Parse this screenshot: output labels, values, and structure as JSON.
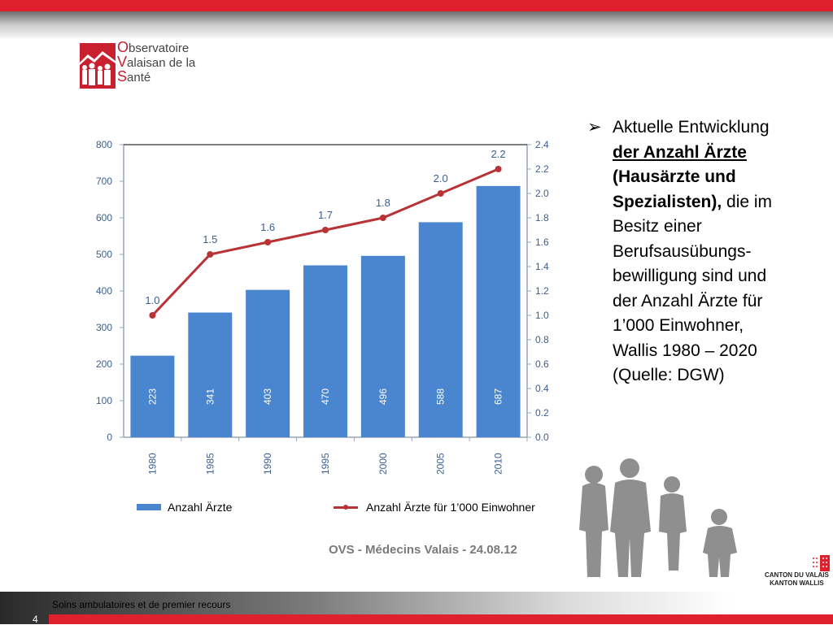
{
  "colors": {
    "brand_red": "#e0202d",
    "bar_blue": "#4a86d0",
    "line_red": "#b83236",
    "axis_text": "#3b5f91"
  },
  "logo": {
    "line1_cap": "O",
    "line1": "bservatoire",
    "line2_cap": "V",
    "line2": "alaisan de la",
    "line3_cap": "S",
    "line3": "anté"
  },
  "chart_data": {
    "type": "bar",
    "categories": [
      "1980",
      "1985",
      "1990",
      "1995",
      "2000",
      "2005",
      "2010"
    ],
    "series": [
      {
        "name": "Anzahl Ärzte",
        "type": "bar",
        "axis": "left",
        "values": [
          223,
          341,
          403,
          470,
          496,
          588,
          687
        ]
      },
      {
        "name": "Anzahl Ärzte für 1’000 Einwohner",
        "type": "line",
        "axis": "right",
        "values": [
          1.0,
          1.5,
          1.6,
          1.7,
          1.8,
          2.0,
          2.2
        ],
        "labels": [
          "1.0",
          "1.5",
          "1.6",
          "1.7",
          "1.8",
          "2.0",
          "2.2"
        ]
      }
    ],
    "ylim": [
      0,
      800
    ],
    "y_ticks": [
      "0",
      "100",
      "200",
      "300",
      "400",
      "500",
      "600",
      "700",
      "800"
    ],
    "y2lim": [
      0,
      2.4
    ],
    "y2_ticks": [
      "0.0",
      "0.2",
      "0.4",
      "0.6",
      "0.8",
      "1.0",
      "1.2",
      "1.4",
      "1.6",
      "1.8",
      "2.0",
      "2.2",
      "2.4"
    ],
    "legend_position": "bottom",
    "grid": false
  },
  "legend": {
    "bars": "Anzahl Ärzte",
    "line": "Anzahl Ärzte für 1’000 Einwohner"
  },
  "source": "OVS - Médecins Valais - 24.08.12",
  "bullet": {
    "icon": "arrow-bullet-icon",
    "glyph": "➢",
    "part1": "Aktuelle Entwicklung ",
    "part2_bold_underline": "der Anzahl Ärzte",
    "part3_bold": " (Hausärzte und Spezialisten),",
    "part4": " die im Besitz einer Berufsausübungs-bewilligung sind und der Anzahl Ärzte für 1’000 Einwohner, Wallis 1980 – 2020 (Quelle: DGW)"
  },
  "footer": {
    "title": "Soins ambulatoires et de premier recours",
    "page": "4"
  },
  "canton": {
    "line1": "CANTON DU VALAIS",
    "line2": "KANTON WALLIS"
  }
}
